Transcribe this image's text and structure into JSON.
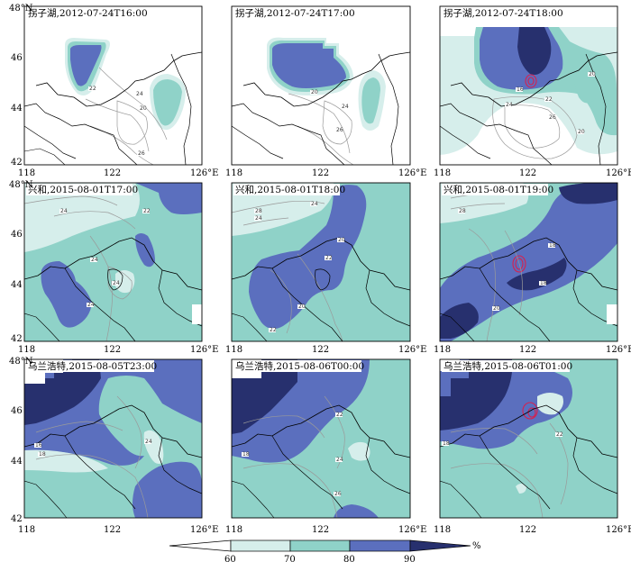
{
  "chart_data": {
    "type": "heatmap",
    "title": "",
    "panels": [
      {
        "row": 0,
        "col": 0,
        "title": "拐子湖,2012-07-24T16:00"
      },
      {
        "row": 0,
        "col": 1,
        "title": "拐子湖,2012-07-24T17:00"
      },
      {
        "row": 0,
        "col": 2,
        "title": "拐子湖,2012-07-24T18:00"
      },
      {
        "row": 1,
        "col": 0,
        "title": "兴和,2015-08-01T17:00"
      },
      {
        "row": 1,
        "col": 1,
        "title": "兴和,2015-08-01T18:00"
      },
      {
        "row": 1,
        "col": 2,
        "title": "兴和,2015-08-01T19:00"
      },
      {
        "row": 2,
        "col": 0,
        "title": "乌兰浩特,2015-08-05T23:00"
      },
      {
        "row": 2,
        "col": 1,
        "title": "乌兰浩特,2015-08-06T00:00"
      },
      {
        "row": 2,
        "col": 2,
        "title": "乌兰浩特,2015-08-06T01:00"
      }
    ],
    "x_ticks": [
      "118",
      "122",
      "126°E"
    ],
    "y_ticks": [
      "42",
      "44",
      "46",
      "48°N"
    ],
    "xlim": [
      118,
      126
    ],
    "ylim": [
      42,
      48
    ],
    "colorbar": {
      "levels": [
        60,
        70,
        80,
        90
      ],
      "tick_labels": [
        "60",
        "70",
        "80",
        "90"
      ],
      "unit": "%",
      "colors": [
        "#d6eeeb",
        "#8fd2c8",
        "#5b6fbe",
        "#27306e"
      ]
    },
    "contour_labels": [
      "16",
      "18",
      "20",
      "22",
      "24",
      "26"
    ]
  }
}
